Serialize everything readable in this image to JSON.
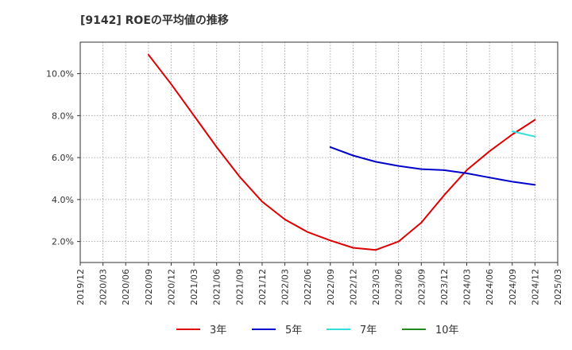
{
  "chart_data": {
    "type": "line",
    "title": "[9142]  ROEの平均値の推移",
    "x_ticks": [
      "2019/12",
      "2020/03",
      "2020/06",
      "2020/09",
      "2020/12",
      "2021/03",
      "2021/06",
      "2021/09",
      "2021/12",
      "2022/03",
      "2022/06",
      "2022/09",
      "2022/12",
      "2023/03",
      "2023/06",
      "2023/09",
      "2023/12",
      "2024/03",
      "2024/06",
      "2024/09",
      "2024/12",
      "2025/03"
    ],
    "y_ticks": [
      "2.0%",
      "4.0%",
      "6.0%",
      "8.0%",
      "10.0%"
    ],
    "y_tick_values": [
      2.0,
      4.0,
      6.0,
      8.0,
      10.0
    ],
    "ylim": [
      1.0,
      11.5
    ],
    "grid": true,
    "legend_position": "bottom",
    "series": [
      {
        "name": "3年",
        "color": "#dd0000",
        "x": [
          "2020/09",
          "2020/12",
          "2021/03",
          "2021/06",
          "2021/09",
          "2021/12",
          "2022/03",
          "2022/06",
          "2022/09",
          "2022/12",
          "2023/03",
          "2023/06",
          "2023/09",
          "2023/12",
          "2024/03",
          "2024/06",
          "2024/09",
          "2024/12"
        ],
        "values": [
          10.9,
          9.5,
          8.0,
          6.5,
          5.1,
          3.9,
          3.05,
          2.45,
          2.05,
          1.7,
          1.6,
          2.0,
          2.9,
          4.2,
          5.4,
          6.3,
          7.1,
          7.8
        ]
      },
      {
        "name": "5年",
        "color": "#0000cc",
        "x": [
          "2022/09",
          "2022/12",
          "2023/03",
          "2023/06",
          "2023/09",
          "2023/12",
          "2024/03",
          "2024/06",
          "2024/09",
          "2024/12"
        ],
        "values": [
          6.5,
          6.1,
          5.8,
          5.6,
          5.45,
          5.4,
          5.25,
          5.05,
          4.85,
          4.7
        ]
      },
      {
        "name": "7年",
        "color": "#33dddd",
        "x": [
          "2024/09",
          "2024/12"
        ],
        "values": [
          7.25,
          7.0
        ]
      },
      {
        "name": "10年",
        "color": "#228822",
        "x": [],
        "values": []
      }
    ]
  }
}
